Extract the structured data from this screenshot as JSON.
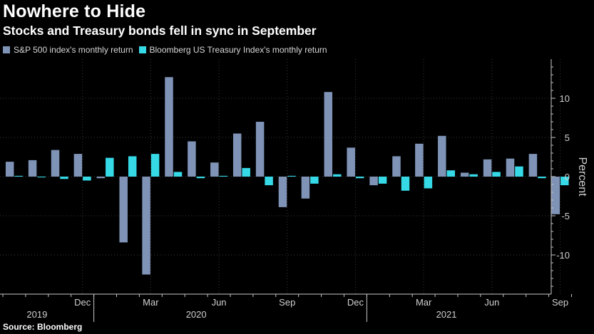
{
  "title": "Nowhere to Hide",
  "subtitle": "Stocks and Treasury bonds fell in sync in September",
  "source": "Source: Bloomberg",
  "colors": {
    "sp500": "#7f93b7",
    "treasury": "#36d9e6",
    "grid": "#3a3a3a",
    "axis": "#c8c8c8"
  },
  "chart_data": {
    "type": "bar",
    "title": "Nowhere to Hide",
    "subtitle": "Stocks and Treasury bonds fell in sync in September",
    "xlabel": "",
    "ylabel": "Percent",
    "ylim": [
      -15,
      15
    ],
    "yticks": [
      -10,
      -5,
      0,
      5,
      10
    ],
    "grid": "vertical dotted at month labels",
    "legend_position": "top-left",
    "categories": [
      "2019-09",
      "2019-10",
      "2019-11",
      "2019-12",
      "2020-01",
      "2020-02",
      "2020-03",
      "2020-04",
      "2020-05",
      "2020-06",
      "2020-07",
      "2020-08",
      "2020-09",
      "2020-10",
      "2020-11",
      "2020-12",
      "2021-01",
      "2021-02",
      "2021-03",
      "2021-04",
      "2021-05",
      "2021-06",
      "2021-07",
      "2021-08",
      "2021-09"
    ],
    "series": [
      {
        "name": "S&P 500 index's monthly return",
        "values": [
          1.9,
          2.1,
          3.4,
          2.9,
          -0.2,
          -8.4,
          -12.5,
          12.7,
          4.5,
          1.8,
          5.5,
          7.0,
          -3.9,
          -2.8,
          10.8,
          3.7,
          -1.1,
          2.6,
          4.2,
          5.2,
          0.5,
          2.2,
          2.3,
          2.9,
          -4.8
        ]
      },
      {
        "name": "Bloomberg US Treasury Index's monthly return",
        "values": [
          0.1,
          -0.1,
          -0.3,
          -0.5,
          2.4,
          2.6,
          2.9,
          0.6,
          -0.2,
          0.1,
          1.1,
          -1.1,
          0.1,
          -0.9,
          0.3,
          -0.2,
          -0.9,
          -1.8,
          -1.5,
          0.8,
          0.3,
          0.6,
          1.3,
          -0.2,
          -1.1
        ]
      }
    ],
    "month_labels": [
      {
        "index": 3,
        "label": "Dec"
      },
      {
        "index": 6,
        "label": "Mar"
      },
      {
        "index": 9,
        "label": "Jun"
      },
      {
        "index": 12,
        "label": "Sep"
      },
      {
        "index": 15,
        "label": "Dec"
      },
      {
        "index": 18,
        "label": "Mar"
      },
      {
        "index": 21,
        "label": "Jun"
      },
      {
        "index": 24,
        "label": "Sep"
      }
    ],
    "year_labels": [
      {
        "index": 1,
        "label": "2019"
      },
      {
        "index": 8,
        "label": "2020"
      },
      {
        "index": 19,
        "label": "2021"
      }
    ],
    "year_boundaries": [
      4,
      16
    ]
  }
}
